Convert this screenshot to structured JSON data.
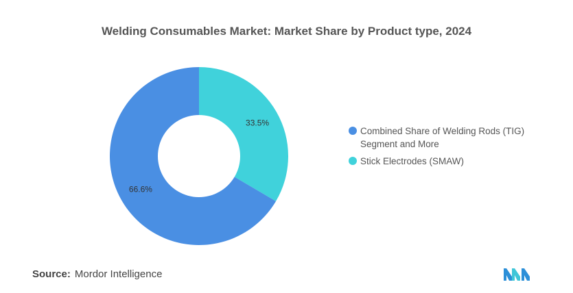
{
  "chart_data": {
    "type": "pie",
    "title": "Welding Consumables Market: Market Share by Product type, 2024",
    "categories": [
      "Combined Share of Welding Rods (TIG) Segment and More",
      "Stick Electrodes (SMAW)"
    ],
    "values": [
      66.6,
      33.5
    ],
    "data_labels": [
      "66.6%",
      "33.5%"
    ],
    "colors": [
      "#4A8FE3",
      "#40D2DB"
    ],
    "donut": true,
    "legend_position": "right"
  },
  "source": {
    "label": "Source:",
    "text": "Mordor Intelligence"
  }
}
